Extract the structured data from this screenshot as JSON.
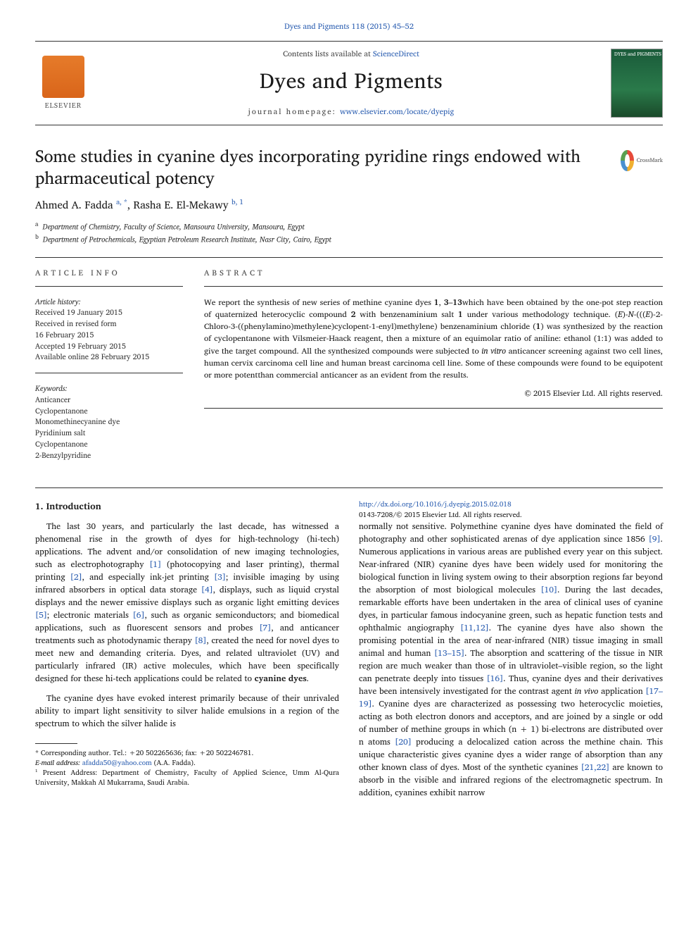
{
  "top_link": "Dyes and Pigments 118 (2015) 45–52",
  "header": {
    "elsevier_label": "ELSEVIER",
    "contents_prefix": "Contents lists available at ",
    "contents_link": "ScienceDirect",
    "journal_name": "Dyes and Pigments",
    "homepage_prefix": "journal homepage: ",
    "homepage_link": "www.elsevier.com/locate/dyepig",
    "cover_label": "DYES\nand\nPIGMENTS"
  },
  "crossmark_label": "CrossMark",
  "title": "Some studies in cyanine dyes incorporating pyridine rings endowed with pharmaceutical potency",
  "authors": [
    {
      "name": "Ahmed A. Fadda",
      "sup": "a, *"
    },
    {
      "name": "Rasha E. El-Mekawy",
      "sup": "b, 1"
    }
  ],
  "affiliations": [
    {
      "sup": "a",
      "text": "Department of Chemistry, Faculty of Science, Mansoura University, Mansoura, Egypt"
    },
    {
      "sup": "b",
      "text": "Department of Petrochemicals, Egyptian Petroleum Research Institute, Nasr City, Cairo, Egypt"
    }
  ],
  "article_info": {
    "label": "ARTICLE INFO",
    "history_label": "Article history:",
    "history": [
      "Received 19 January 2015",
      "Received in revised form",
      "16 February 2015",
      "Accepted 19 February 2015",
      "Available online 28 February 2015"
    ],
    "keywords_label": "Keywords:",
    "keywords": [
      "Anticancer",
      "Cyclopentanone",
      "Monomethinecyanine dye",
      "Pyridinium salt",
      "Cyclopentanone",
      "2-Benzylpyridine"
    ]
  },
  "abstract": {
    "label": "ABSTRACT",
    "text_parts": [
      "We report the synthesis of new series of methine cyanine dyes ",
      "1",
      ", ",
      "3",
      "–",
      "13",
      "which have been obtained by the one-pot step reaction of quaternized heterocyclic compound ",
      "2",
      " with benzenaminium salt ",
      "1",
      " under various methodology technique. (",
      "E",
      ")-",
      "N",
      "-(((",
      "E",
      ")-2-Chloro-3-((phenylamino)methylene)cyclopent-1-enyl)methylene) benzenaminium chloride (",
      "1",
      ") was synthesized by the reaction of cyclopentanone with Vilsmeier-Haack reagent, then a mixture of an equimolar ratio of aniline: ethanol (1:1) was added to give the target compound. All the synthesized compounds were subjected to ",
      "in vitro",
      " anticancer screening against two cell lines, human cervix carcinoma cell line and human breast carcinoma cell line. Some of these compounds were found to be equipotent or more potentthan commercial anticancer as an evident from the results."
    ],
    "copyright": "© 2015 Elsevier Ltd. All rights reserved."
  },
  "intro": {
    "heading": "1. Introduction",
    "para1": {
      "t1": "The last 30 years, and particularly the last decade, has witnessed a phenomenal rise in the growth of dyes for high-technology (hi-tech) applications. The advent and/or consolidation of new imaging technologies, such as electrophotography ",
      "r1": "[1]",
      "t2": " (photocopying and laser printing), thermal printing ",
      "r2": "[2]",
      "t3": ", and especially ink-jet printing ",
      "r3": "[3]",
      "t4": "; invisible imaging by using infrared absorbers in optical data storage ",
      "r4": "[4]",
      "t5": ", displays, such as liquid crystal displays and the newer emissive displays such as organic light emitting devices ",
      "r5": "[5]",
      "t6": "; electronic materials ",
      "r6": "[6]",
      "t7": ", such as organic semiconductors; and biomedical applications, such as fluorescent sensors and probes ",
      "r7": "[7]",
      "t8": ", and anticancer treatments such as photodynamic therapy ",
      "r8": "[8]",
      "t9": ", created the need for novel dyes to meet new and demanding criteria. Dyes, and related ultraviolet (UV) and particularly infrared (IR) active molecules, which have been specifically designed for these hi-tech applications could be related to ",
      "bold": "cyanine dyes",
      "t10": "."
    },
    "para2": "The cyanine dyes have evoked interest primarily because of their unrivaled ability to impart light sensitivity to silver halide emulsions in a region of the spectrum to which the silver halide is",
    "para3": {
      "t1": "normally not sensitive. Polymethine cyanine dyes have dominated the field of photography and other sophisticated arenas of dye application since 1856 ",
      "r9": "[9]",
      "t2": ". Numerous applications in various areas are published every year on this subject. Near-infrared (NIR) cyanine dyes have been widely used for monitoring the biological function in living system owing to their absorption regions far beyond the absorption of most biological molecules ",
      "r10": "[10]",
      "t3": ". During the last decades, remarkable efforts have been undertaken in the area of clinical uses of cyanine dyes, in particular famous indocyanine green, such as hepatic function tests and ophthalmic angiography ",
      "r11": "[11,12]",
      "t4": ". The cyanine dyes have also shown the promising potential in the area of near-infrared (NIR) tissue imaging in small animal and human ",
      "r12": "[13–15]",
      "t5": ". The absorption and scattering of the tissue in NIR region are much weaker than those of in ultraviolet–visible region, so the light can penetrate deeply into tissues ",
      "r13": "[16]",
      "t6": ". Thus, cyanine dyes and their derivatives have been intensively investigated for the contrast agent ",
      "italic": "in vivo",
      "t7": " application ",
      "r14": "[17–19]",
      "t8": ". Cyanine dyes are characterized as possessing two heterocyclic moieties, acting as both electron donors and acceptors, and are joined by a single or odd of number of methine groups in which (n + 1) bi-electrons are distributed over n atoms ",
      "r15": "[20]",
      "t9": " producing a delocalized cation across the methine chain. This unique characteristic gives cyanine dyes a wider range of absorption than any other known class of dyes. Most of the synthetic cyanines ",
      "r16": "[21,22]",
      "t10": " are known to absorb in the visible and infrared regions of the electromagnetic spectrum. In addition, cyanines exhibit narrow"
    }
  },
  "footnotes": {
    "corr": "* Corresponding author. Tel.: +20 502265636; fax: +20 502246781.",
    "email_label": "E-mail address: ",
    "email": "afadda50@yahoo.com",
    "email_suffix": " (A.A. Fadda).",
    "note1": "¹ Present Address: Department of Chemistry, Faculty of Applied Science, Umm Al-Qura University, Makkah Al Mukarrama, Saudi Arabia."
  },
  "bottom": {
    "doi": "http://dx.doi.org/10.1016/j.dyepig.2015.02.018",
    "issn_line": "0143-7208/© 2015 Elsevier Ltd. All rights reserved."
  },
  "colors": {
    "link": "#2a5db0",
    "text": "#1a1a1a",
    "elsevier": "#e67b2a"
  }
}
